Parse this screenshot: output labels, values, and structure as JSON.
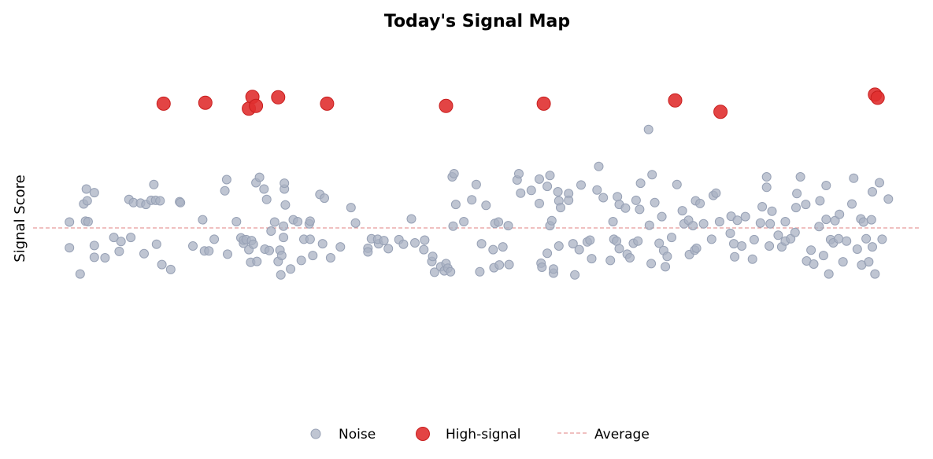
{
  "chart_data": {
    "type": "scatter",
    "title": "Today's Signal Map",
    "xlabel": "",
    "ylabel": "Signal Score",
    "xlim": [
      0,
      100
    ],
    "ylim": [
      -4,
      4
    ],
    "grid": false,
    "legend_placement": "bottom-center",
    "average": 0,
    "colors": {
      "noise": "#a9b2c3",
      "high_signal": "#e03030",
      "average_line": "#e89a9a"
    },
    "legend": {
      "noise_label": "Noise",
      "high_label": "High-signal",
      "average_label": "Average"
    },
    "series": [
      {
        "name": "High-signal",
        "points": [
          [
            14.7,
            2.75
          ],
          [
            19.4,
            2.77
          ],
          [
            24.3,
            2.64
          ],
          [
            24.7,
            2.9
          ],
          [
            25.1,
            2.7
          ],
          [
            27.6,
            2.89
          ],
          [
            33.1,
            2.75
          ],
          [
            46.5,
            2.7
          ],
          [
            57.5,
            2.75
          ],
          [
            72.3,
            2.82
          ],
          [
            77.4,
            2.57
          ],
          [
            94.8,
            2.95
          ],
          [
            95.1,
            2.88
          ]
        ]
      },
      {
        "name": "Noise",
        "points": [
          [
            4.1,
            0.13
          ],
          [
            4.1,
            -0.44
          ],
          [
            5.3,
            -1.02
          ],
          [
            5.7,
            0.53
          ],
          [
            5.9,
            0.15
          ],
          [
            6.0,
            0.86
          ],
          [
            6.2,
            0.14
          ],
          [
            6.1,
            0.6
          ],
          [
            6.9,
            0.78
          ],
          [
            6.9,
            -0.39
          ],
          [
            6.9,
            -0.65
          ],
          [
            8.1,
            -0.66
          ],
          [
            9.1,
            -0.21
          ],
          [
            9.7,
            -0.52
          ],
          [
            9.9,
            -0.3
          ],
          [
            10.8,
            0.63
          ],
          [
            11.0,
            -0.21
          ],
          [
            11.3,
            0.56
          ],
          [
            12.1,
            0.55
          ],
          [
            12.5,
            -0.57
          ],
          [
            12.7,
            0.52
          ],
          [
            13.3,
            0.61
          ],
          [
            13.6,
            0.96
          ],
          [
            13.9,
            -0.36
          ],
          [
            13.8,
            0.61
          ],
          [
            14.3,
            0.6
          ],
          [
            14.5,
            -0.81
          ],
          [
            15.5,
            -0.92
          ],
          [
            16.5,
            0.58
          ],
          [
            16.6,
            0.56
          ],
          [
            18.0,
            -0.4
          ],
          [
            19.1,
            0.18
          ],
          [
            19.3,
            -0.51
          ],
          [
            19.8,
            -0.51
          ],
          [
            20.4,
            -0.25
          ],
          [
            21.6,
            0.82
          ],
          [
            21.8,
            1.07
          ],
          [
            21.9,
            -0.58
          ],
          [
            22.9,
            0.14
          ],
          [
            23.4,
            -0.22
          ],
          [
            23.7,
            -0.34
          ],
          [
            23.7,
            -0.27
          ],
          [
            24.0,
            -0.26
          ],
          [
            24.3,
            -0.48
          ],
          [
            24.6,
            -0.28
          ],
          [
            24.8,
            -0.36
          ],
          [
            24.5,
            -0.76
          ],
          [
            25.1,
            1.0
          ],
          [
            25.2,
            -0.74
          ],
          [
            25.5,
            1.12
          ],
          [
            26.1,
            -0.47
          ],
          [
            26.0,
            0.86
          ],
          [
            26.3,
            0.63
          ],
          [
            26.6,
            -0.5
          ],
          [
            26.8,
            -0.07
          ],
          [
            27.2,
            0.13
          ],
          [
            27.8,
            -0.49
          ],
          [
            27.6,
            -0.74
          ],
          [
            27.9,
            -1.04
          ],
          [
            28.0,
            -0.61
          ],
          [
            28.2,
            0.04
          ],
          [
            28.2,
            -0.21
          ],
          [
            28.3,
            0.86
          ],
          [
            28.3,
            0.99
          ],
          [
            28.4,
            0.51
          ],
          [
            29.0,
            -0.91
          ],
          [
            29.3,
            0.18
          ],
          [
            29.8,
            0.14
          ],
          [
            30.2,
            -0.72
          ],
          [
            30.5,
            -0.25
          ],
          [
            31.1,
            0.09
          ],
          [
            31.2,
            -0.25
          ],
          [
            31.2,
            0.15
          ],
          [
            31.5,
            -0.61
          ],
          [
            32.3,
            0.74
          ],
          [
            32.8,
            0.66
          ],
          [
            32.6,
            -0.35
          ],
          [
            33.5,
            -0.66
          ],
          [
            34.6,
            -0.42
          ],
          [
            35.8,
            0.45
          ],
          [
            36.3,
            0.11
          ],
          [
            37.7,
            -0.45
          ],
          [
            37.7,
            -0.53
          ],
          [
            38.1,
            -0.24
          ],
          [
            38.9,
            -0.35
          ],
          [
            38.8,
            -0.25
          ],
          [
            39.5,
            -0.28
          ],
          [
            40.0,
            -0.46
          ],
          [
            41.2,
            -0.26
          ],
          [
            41.7,
            -0.36
          ],
          [
            42.6,
            0.2
          ],
          [
            43.0,
            -0.33
          ],
          [
            44.0,
            -0.48
          ],
          [
            44.1,
            -0.27
          ],
          [
            44.9,
            -0.74
          ],
          [
            45.0,
            -0.63
          ],
          [
            45.2,
            -0.98
          ],
          [
            45.9,
            -0.86
          ],
          [
            46.3,
            -0.95
          ],
          [
            46.5,
            -0.79
          ],
          [
            46.7,
            -0.89
          ],
          [
            47.0,
            -0.97
          ],
          [
            47.3,
            0.04
          ],
          [
            47.2,
            1.13
          ],
          [
            47.4,
            1.2
          ],
          [
            47.6,
            0.52
          ],
          [
            48.5,
            0.14
          ],
          [
            49.4,
            0.62
          ],
          [
            49.9,
            0.96
          ],
          [
            50.3,
            -0.97
          ],
          [
            50.5,
            -0.35
          ],
          [
            51.0,
            0.5
          ],
          [
            51.8,
            -0.48
          ],
          [
            51.9,
            -0.88
          ],
          [
            52.0,
            0.1
          ],
          [
            52.4,
            0.13
          ],
          [
            52.5,
            -0.82
          ],
          [
            52.9,
            -0.42
          ],
          [
            53.5,
            0.05
          ],
          [
            53.6,
            -0.81
          ],
          [
            54.5,
            1.06
          ],
          [
            54.7,
            1.2
          ],
          [
            54.9,
            0.77
          ],
          [
            56.1,
            0.83
          ],
          [
            57.0,
            1.08
          ],
          [
            57.0,
            0.54
          ],
          [
            57.2,
            -0.78
          ],
          [
            57.3,
            -0.87
          ],
          [
            57.9,
            0.92
          ],
          [
            57.9,
            -0.56
          ],
          [
            58.2,
            0.05
          ],
          [
            58.4,
            0.16
          ],
          [
            58.6,
            -1.0
          ],
          [
            58.6,
            -0.91
          ],
          [
            58.2,
            1.16
          ],
          [
            59.1,
            0.8
          ],
          [
            59.2,
            -0.4
          ],
          [
            59.2,
            0.6
          ],
          [
            59.4,
            0.45
          ],
          [
            60.3,
            0.76
          ],
          [
            60.3,
            0.61
          ],
          [
            60.8,
            -0.35
          ],
          [
            61.0,
            -1.04
          ],
          [
            61.5,
            -0.48
          ],
          [
            61.7,
            0.95
          ],
          [
            62.4,
            -0.31
          ],
          [
            62.9,
            -0.68
          ],
          [
            62.7,
            -0.27
          ],
          [
            63.5,
            0.84
          ],
          [
            63.7,
            1.36
          ],
          [
            64.2,
            0.67
          ],
          [
            65.0,
            -0.72
          ],
          [
            65.3,
            0.14
          ],
          [
            65.4,
            -0.25
          ],
          [
            65.7,
            -0.29
          ],
          [
            65.8,
            0.69
          ],
          [
            66.0,
            -0.46
          ],
          [
            66.0,
            0.52
          ],
          [
            66.7,
            0.44
          ],
          [
            66.9,
            -0.58
          ],
          [
            67.2,
            -0.66
          ],
          [
            67.6,
            -0.34
          ],
          [
            67.9,
            0.61
          ],
          [
            68.1,
            -0.29
          ],
          [
            68.4,
            0.99
          ],
          [
            68.3,
            0.41
          ],
          [
            69.3,
            2.18
          ],
          [
            69.4,
            0.06
          ],
          [
            69.6,
            -0.79
          ],
          [
            69.7,
            1.18
          ],
          [
            70.0,
            0.56
          ],
          [
            70.5,
            -0.34
          ],
          [
            70.8,
            0.25
          ],
          [
            71.0,
            -0.5
          ],
          [
            71.2,
            -0.86
          ],
          [
            71.4,
            -0.63
          ],
          [
            71.9,
            -0.21
          ],
          [
            72.5,
            0.96
          ],
          [
            73.1,
            0.38
          ],
          [
            73.3,
            0.09
          ],
          [
            73.8,
            0.17
          ],
          [
            73.9,
            -0.59
          ],
          [
            74.3,
            0.05
          ],
          [
            74.5,
            -0.49
          ],
          [
            74.6,
            0.6
          ],
          [
            74.7,
            -0.45
          ],
          [
            75.1,
            0.54
          ],
          [
            75.5,
            0.09
          ],
          [
            76.4,
            -0.25
          ],
          [
            76.6,
            0.72
          ],
          [
            76.9,
            0.77
          ],
          [
            77.3,
            0.14
          ],
          [
            78.5,
            -0.12
          ],
          [
            78.6,
            0.26
          ],
          [
            78.9,
            -0.35
          ],
          [
            79.0,
            -0.64
          ],
          [
            79.3,
            0.17
          ],
          [
            79.8,
            -0.4
          ],
          [
            80.2,
            0.25
          ],
          [
            81.0,
            -0.69
          ],
          [
            81.2,
            -0.26
          ],
          [
            81.9,
            0.11
          ],
          [
            82.1,
            0.47
          ],
          [
            82.6,
            0.9
          ],
          [
            82.9,
            -0.4
          ],
          [
            82.6,
            1.13
          ],
          [
            83.0,
            0.09
          ],
          [
            83.2,
            0.37
          ],
          [
            83.9,
            -0.16
          ],
          [
            84.3,
            -0.42
          ],
          [
            84.7,
            -0.29
          ],
          [
            84.7,
            0.14
          ],
          [
            85.3,
            -0.24
          ],
          [
            85.8,
            -0.1
          ],
          [
            85.9,
            0.45
          ],
          [
            86.0,
            0.76
          ],
          [
            86.4,
            1.13
          ],
          [
            87.0,
            0.52
          ],
          [
            87.1,
            -0.73
          ],
          [
            87.6,
            -0.49
          ],
          [
            87.9,
            -0.8
          ],
          [
            88.5,
            0.03
          ],
          [
            88.6,
            0.6
          ],
          [
            89.0,
            -0.61
          ],
          [
            89.3,
            0.94
          ],
          [
            89.3,
            0.19
          ],
          [
            89.6,
            -1.02
          ],
          [
            89.8,
            -0.26
          ],
          [
            90.1,
            -0.33
          ],
          [
            90.3,
            0.16
          ],
          [
            90.7,
            -0.24
          ],
          [
            90.8,
            0.3
          ],
          [
            91.2,
            -0.75
          ],
          [
            91.6,
            -0.29
          ],
          [
            92.2,
            0.53
          ],
          [
            92.4,
            1.1
          ],
          [
            92.8,
            -0.47
          ],
          [
            93.2,
            0.2
          ],
          [
            93.3,
            -0.82
          ],
          [
            93.5,
            0.13
          ],
          [
            93.8,
            -0.24
          ],
          [
            94.1,
            -0.75
          ],
          [
            94.4,
            0.18
          ],
          [
            94.5,
            -0.42
          ],
          [
            94.5,
            0.8
          ],
          [
            94.8,
            -1.02
          ],
          [
            95.3,
            1.0
          ],
          [
            95.6,
            -0.25
          ],
          [
            96.3,
            0.64
          ]
        ]
      }
    ]
  }
}
